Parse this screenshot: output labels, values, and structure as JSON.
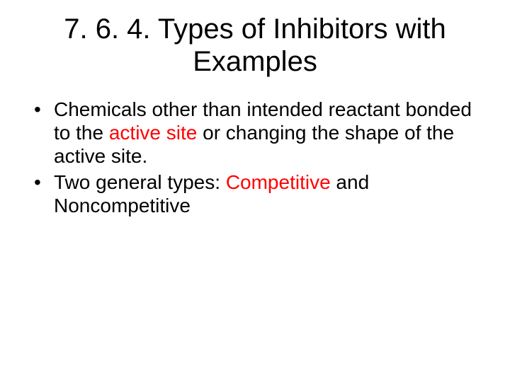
{
  "title_line1": "7. 6. 4.  Types of Inhibitors with",
  "title_line2": "Examples",
  "b1_a": "Chemicals other than intended reactant bonded to the ",
  "b1_hl": "active site",
  "b1_b": " or changing the shape of the active site.",
  "b2_a": "Two general types:  ",
  "b2_hl": "Competitive",
  "b2_b": " and Noncompetitive"
}
